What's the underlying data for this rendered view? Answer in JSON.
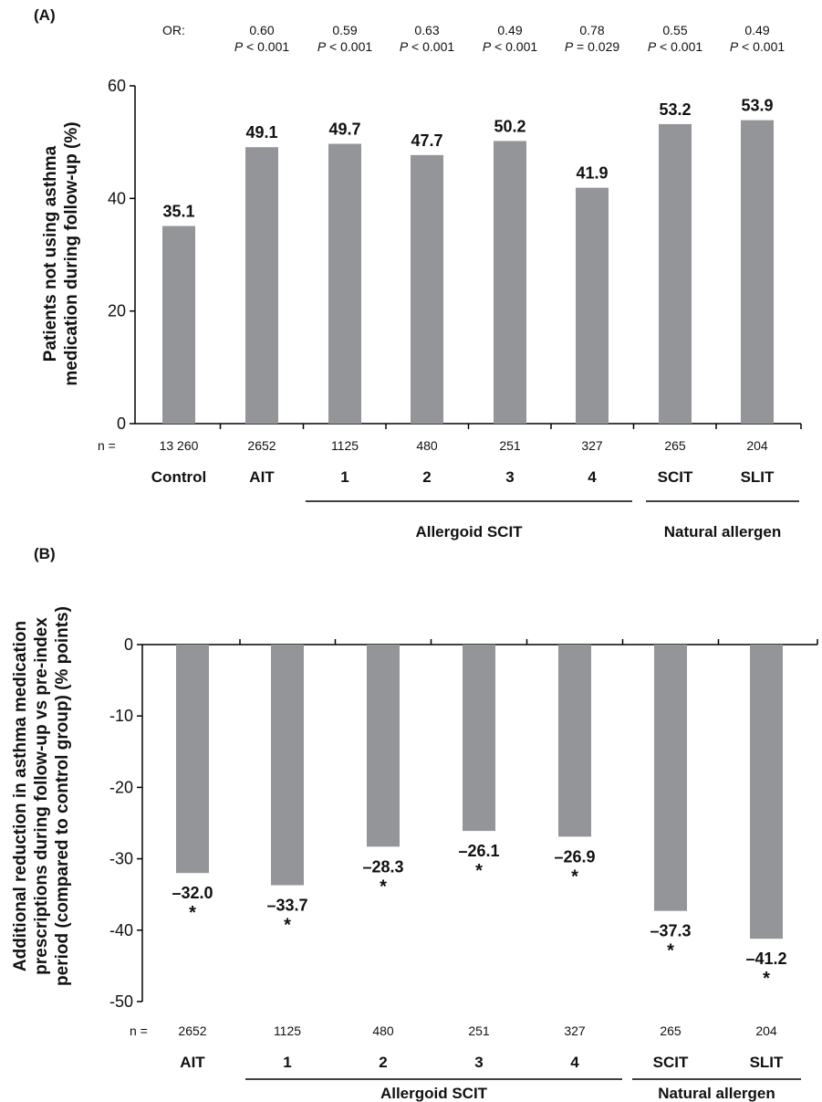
{
  "colors": {
    "bar": "#939598",
    "axis": "#000000",
    "text": "#111111"
  },
  "chart_data": [
    {
      "panel": "(A)",
      "type": "bar",
      "ylabel_lines": [
        "Patients not using asthma",
        "medication during follow-up (%)"
      ],
      "ylim": [
        0,
        60
      ],
      "yticks": [
        0,
        20,
        40,
        60
      ],
      "n_prefix": "n  =",
      "or_prefix": "OR:",
      "categories": [
        "Control",
        "AIT",
        "1",
        "2",
        "3",
        "4",
        "SCIT",
        "SLIT"
      ],
      "values": [
        35.1,
        49.1,
        49.7,
        47.7,
        50.2,
        41.9,
        53.2,
        53.9
      ],
      "value_labels": [
        "35.1",
        "49.1",
        "49.7",
        "47.7",
        "50.2",
        "41.9",
        "53.2",
        "53.9"
      ],
      "n": [
        "13 260",
        "2652",
        "1125",
        "480",
        "251",
        "327",
        "265",
        "204"
      ],
      "odds_ratios": [
        null,
        "0.60",
        "0.59",
        "0.63",
        "0.49",
        "0.78",
        "0.55",
        "0.49"
      ],
      "p_values": [
        null,
        "< 0.001",
        "< 0.001",
        "< 0.001",
        "< 0.001",
        "= 0.029",
        "< 0.001",
        "< 0.001"
      ],
      "groups": [
        {
          "label": "Allergoid SCIT",
          "from": 2,
          "to": 5
        },
        {
          "label": "Natural allergen",
          "from": 6,
          "to": 7
        }
      ],
      "grid": false
    },
    {
      "panel": "(B)",
      "type": "bar",
      "ylabel_lines": [
        "Additional reduction in asthma medication",
        "prescriptions during follow-up vs pre-index",
        "period (compared to control group) (% points)"
      ],
      "ylim": [
        -50,
        0
      ],
      "yticks": [
        0,
        -10,
        -20,
        -30,
        -40,
        -50
      ],
      "ytick_labels": [
        "0",
        "-10",
        "-20",
        "-30",
        "-40",
        "-50"
      ],
      "n_prefix": "n  =",
      "categories": [
        "AIT",
        "1",
        "2",
        "3",
        "4",
        "SCIT",
        "SLIT"
      ],
      "values": [
        -32.0,
        -33.7,
        -28.3,
        -26.1,
        -26.9,
        -37.3,
        -41.2
      ],
      "value_labels": [
        "–32.0",
        "–33.7",
        "–28.3",
        "–26.1",
        "–26.9",
        "–37.3",
        "–41.2"
      ],
      "significance": [
        "*",
        "*",
        "*",
        "*",
        "*",
        "*",
        "*"
      ],
      "n": [
        "2652",
        "1125",
        "480",
        "251",
        "327",
        "265",
        "204"
      ],
      "groups": [
        {
          "label": "Allergoid SCIT",
          "from": 1,
          "to": 4
        },
        {
          "label": "Natural allergen",
          "from": 5,
          "to": 6
        }
      ],
      "grid": false
    }
  ]
}
